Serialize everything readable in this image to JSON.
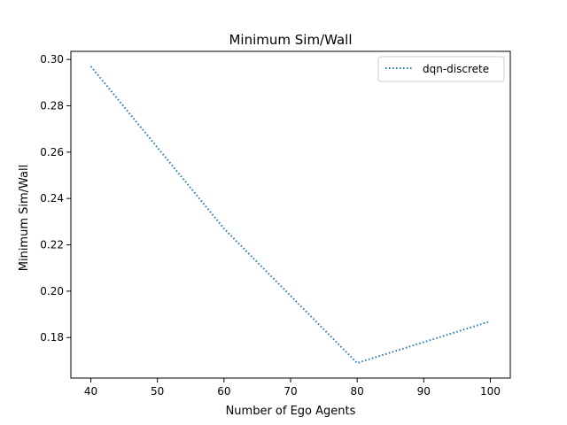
{
  "chart_data": {
    "type": "line",
    "title": "Minimum Sim/Wall",
    "xlabel": "Number of Ego Agents",
    "ylabel": "Minimum Sim/Wall",
    "x": [
      40,
      60,
      80,
      100
    ],
    "series": [
      {
        "name": "dqn-discrete",
        "values": [
          0.297,
          0.227,
          0.169,
          0.187
        ],
        "color": "#1f77b4",
        "line_style": "dotted"
      }
    ],
    "xlim": [
      37,
      103
    ],
    "ylim": [
      0.1625,
      0.3035
    ],
    "x_ticks": [
      40,
      50,
      60,
      70,
      80,
      90,
      100
    ],
    "x_tick_labels": [
      "40",
      "50",
      "60",
      "70",
      "80",
      "90",
      "100"
    ],
    "y_ticks": [
      0.18,
      0.2,
      0.22,
      0.24,
      0.26,
      0.28,
      0.3
    ],
    "y_tick_labels": [
      "0.18",
      "0.20",
      "0.22",
      "0.24",
      "0.26",
      "0.28",
      "0.30"
    ],
    "grid": false,
    "legend_position": "top-right"
  }
}
